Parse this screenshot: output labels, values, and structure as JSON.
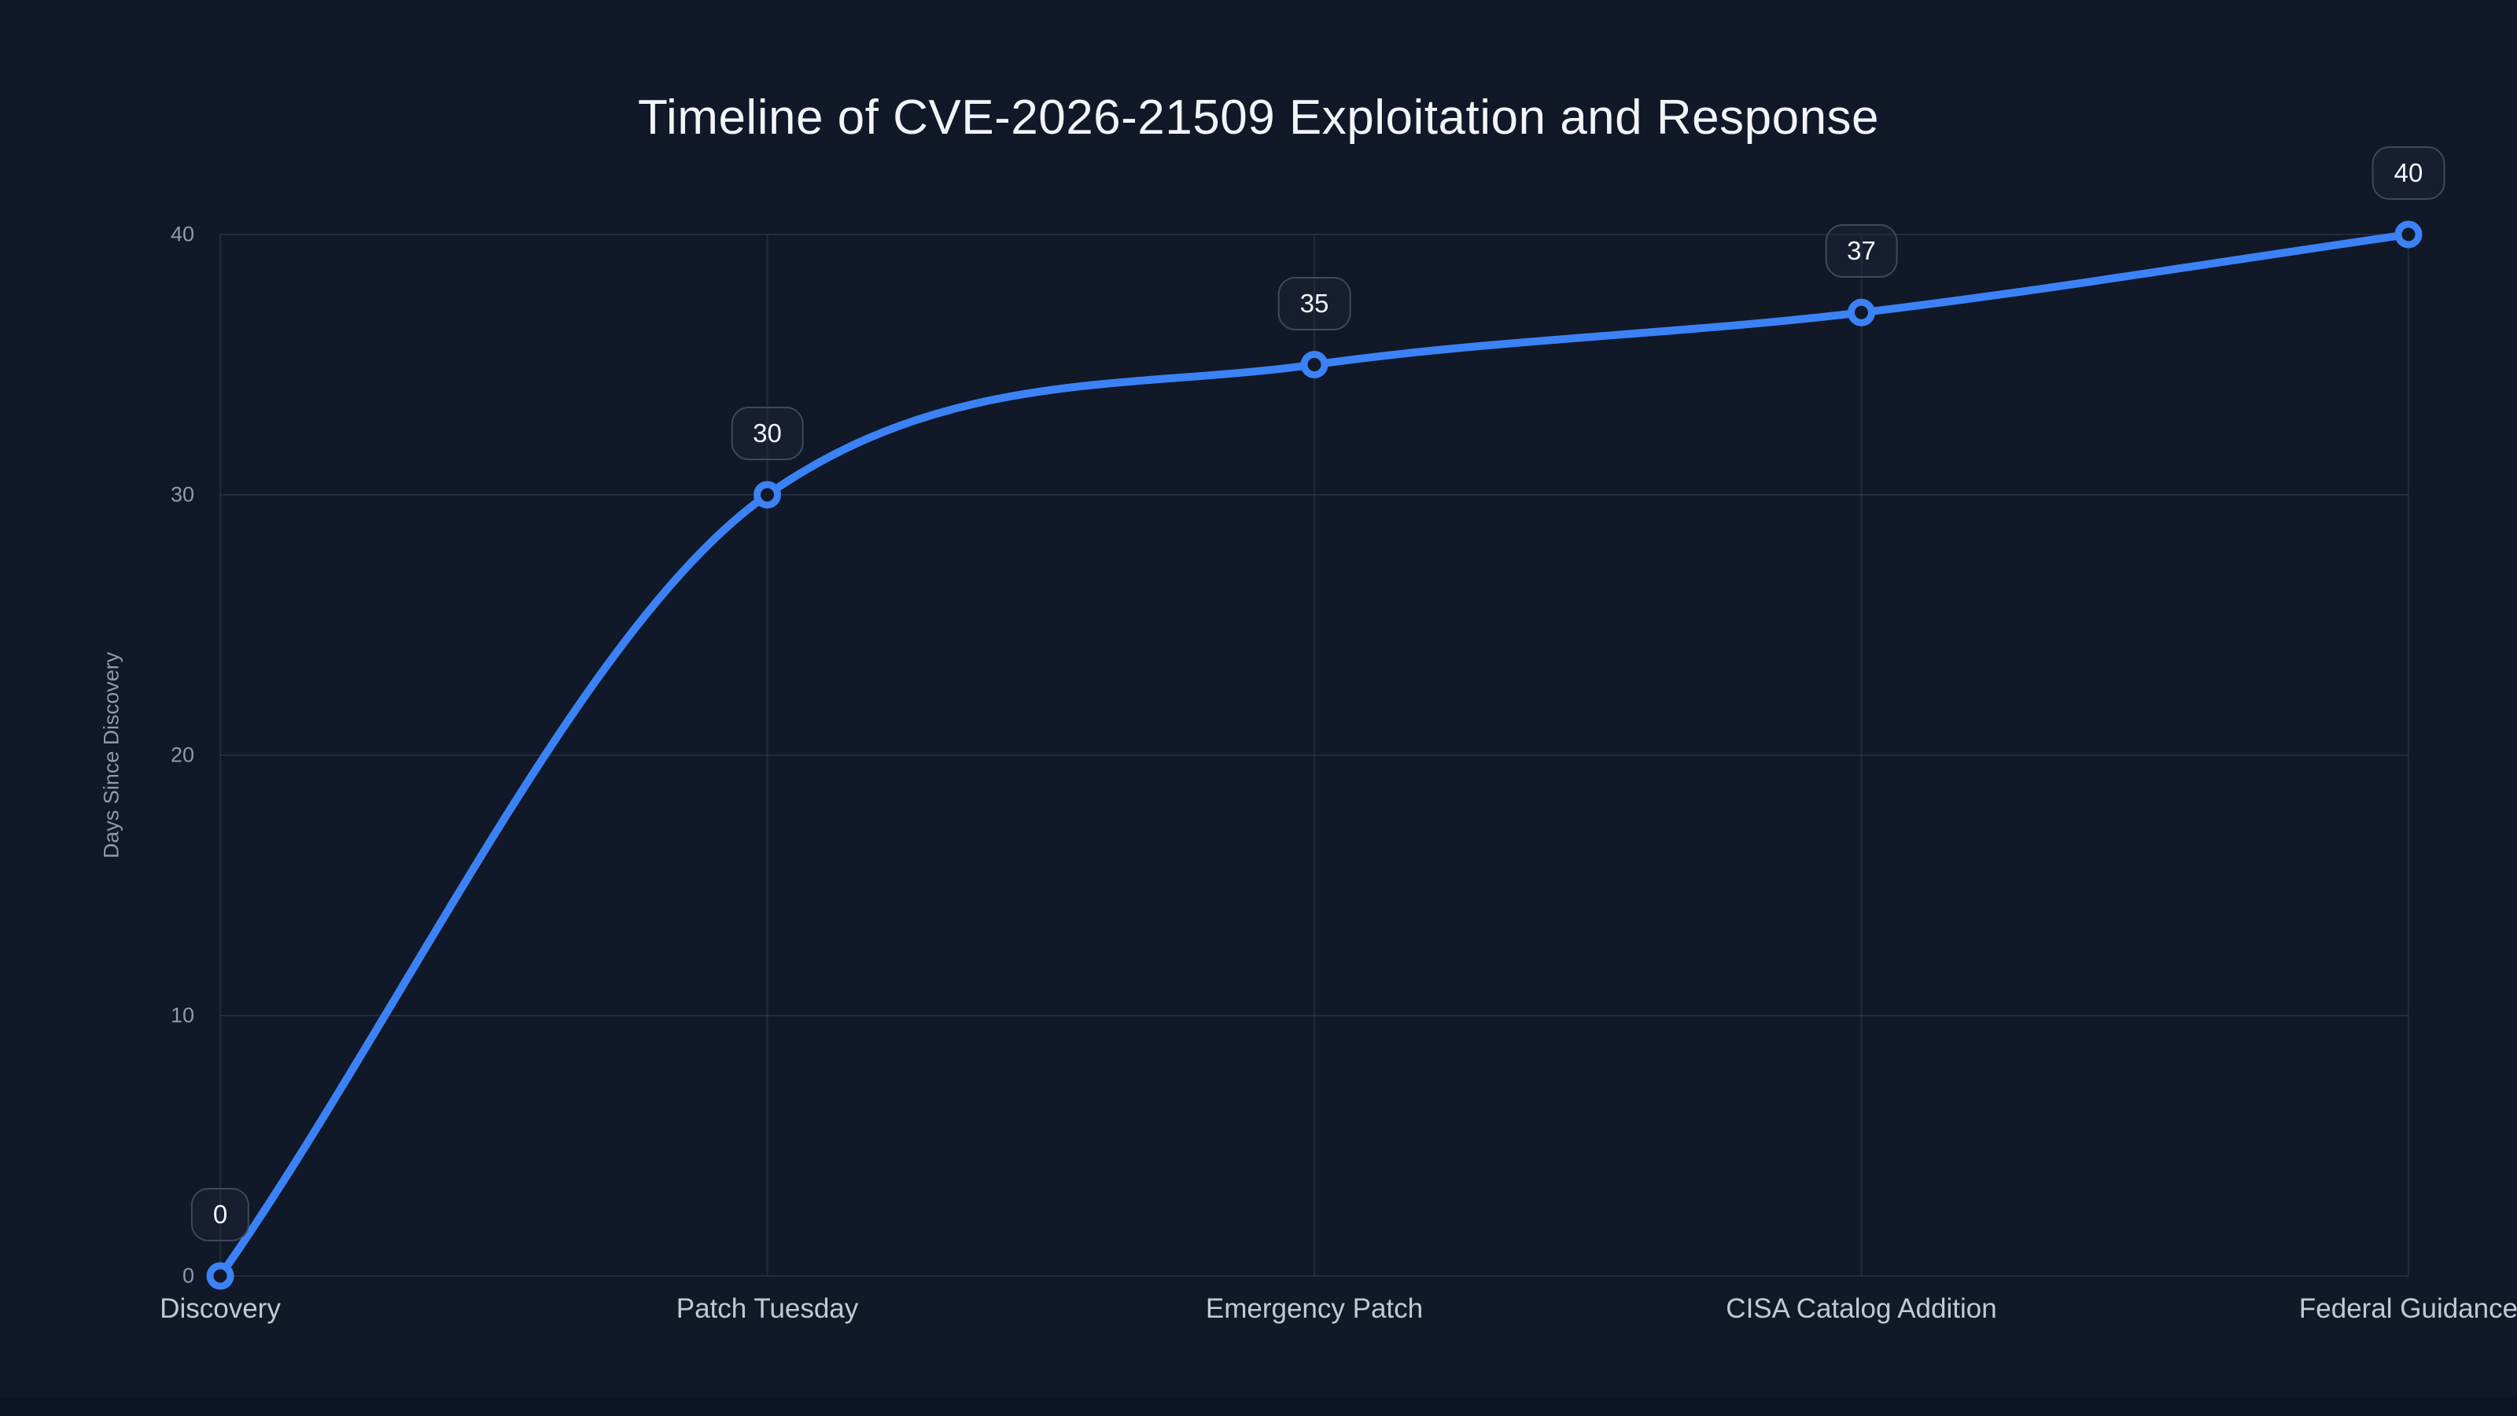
{
  "page": {
    "background": "#111827"
  },
  "chart_data": {
    "type": "line",
    "title": "Timeline of CVE-2026-21509 Exploitation and Response",
    "categories": [
      "Discovery",
      "Patch Tuesday",
      "Emergency Patch",
      "CISA Catalog Addition",
      "Federal Guidance"
    ],
    "values": [
      0,
      30,
      35,
      37,
      40
    ],
    "point_labels": [
      "0",
      "30",
      "35",
      "37",
      "40"
    ],
    "xlabel": "",
    "ylabel": "Days Since Discovery",
    "ylim": [
      0,
      40
    ],
    "yticks": [
      0,
      10,
      20,
      30,
      40
    ],
    "grid": true,
    "legend": "none",
    "line_style": "smooth-monotone",
    "colors": {
      "line": "#3b82f6",
      "marker_ring": "#3b82f6",
      "marker_fill": "#111827",
      "grid": "rgba(148,163,184,0.14)",
      "title_text": "#f2f5f8",
      "ytick_text": "#8e9aae",
      "xtick_text": "#c2c9d6",
      "point_label_text": "#f1f5f9",
      "point_label_border": "#3f495c",
      "background": "#111827"
    }
  }
}
